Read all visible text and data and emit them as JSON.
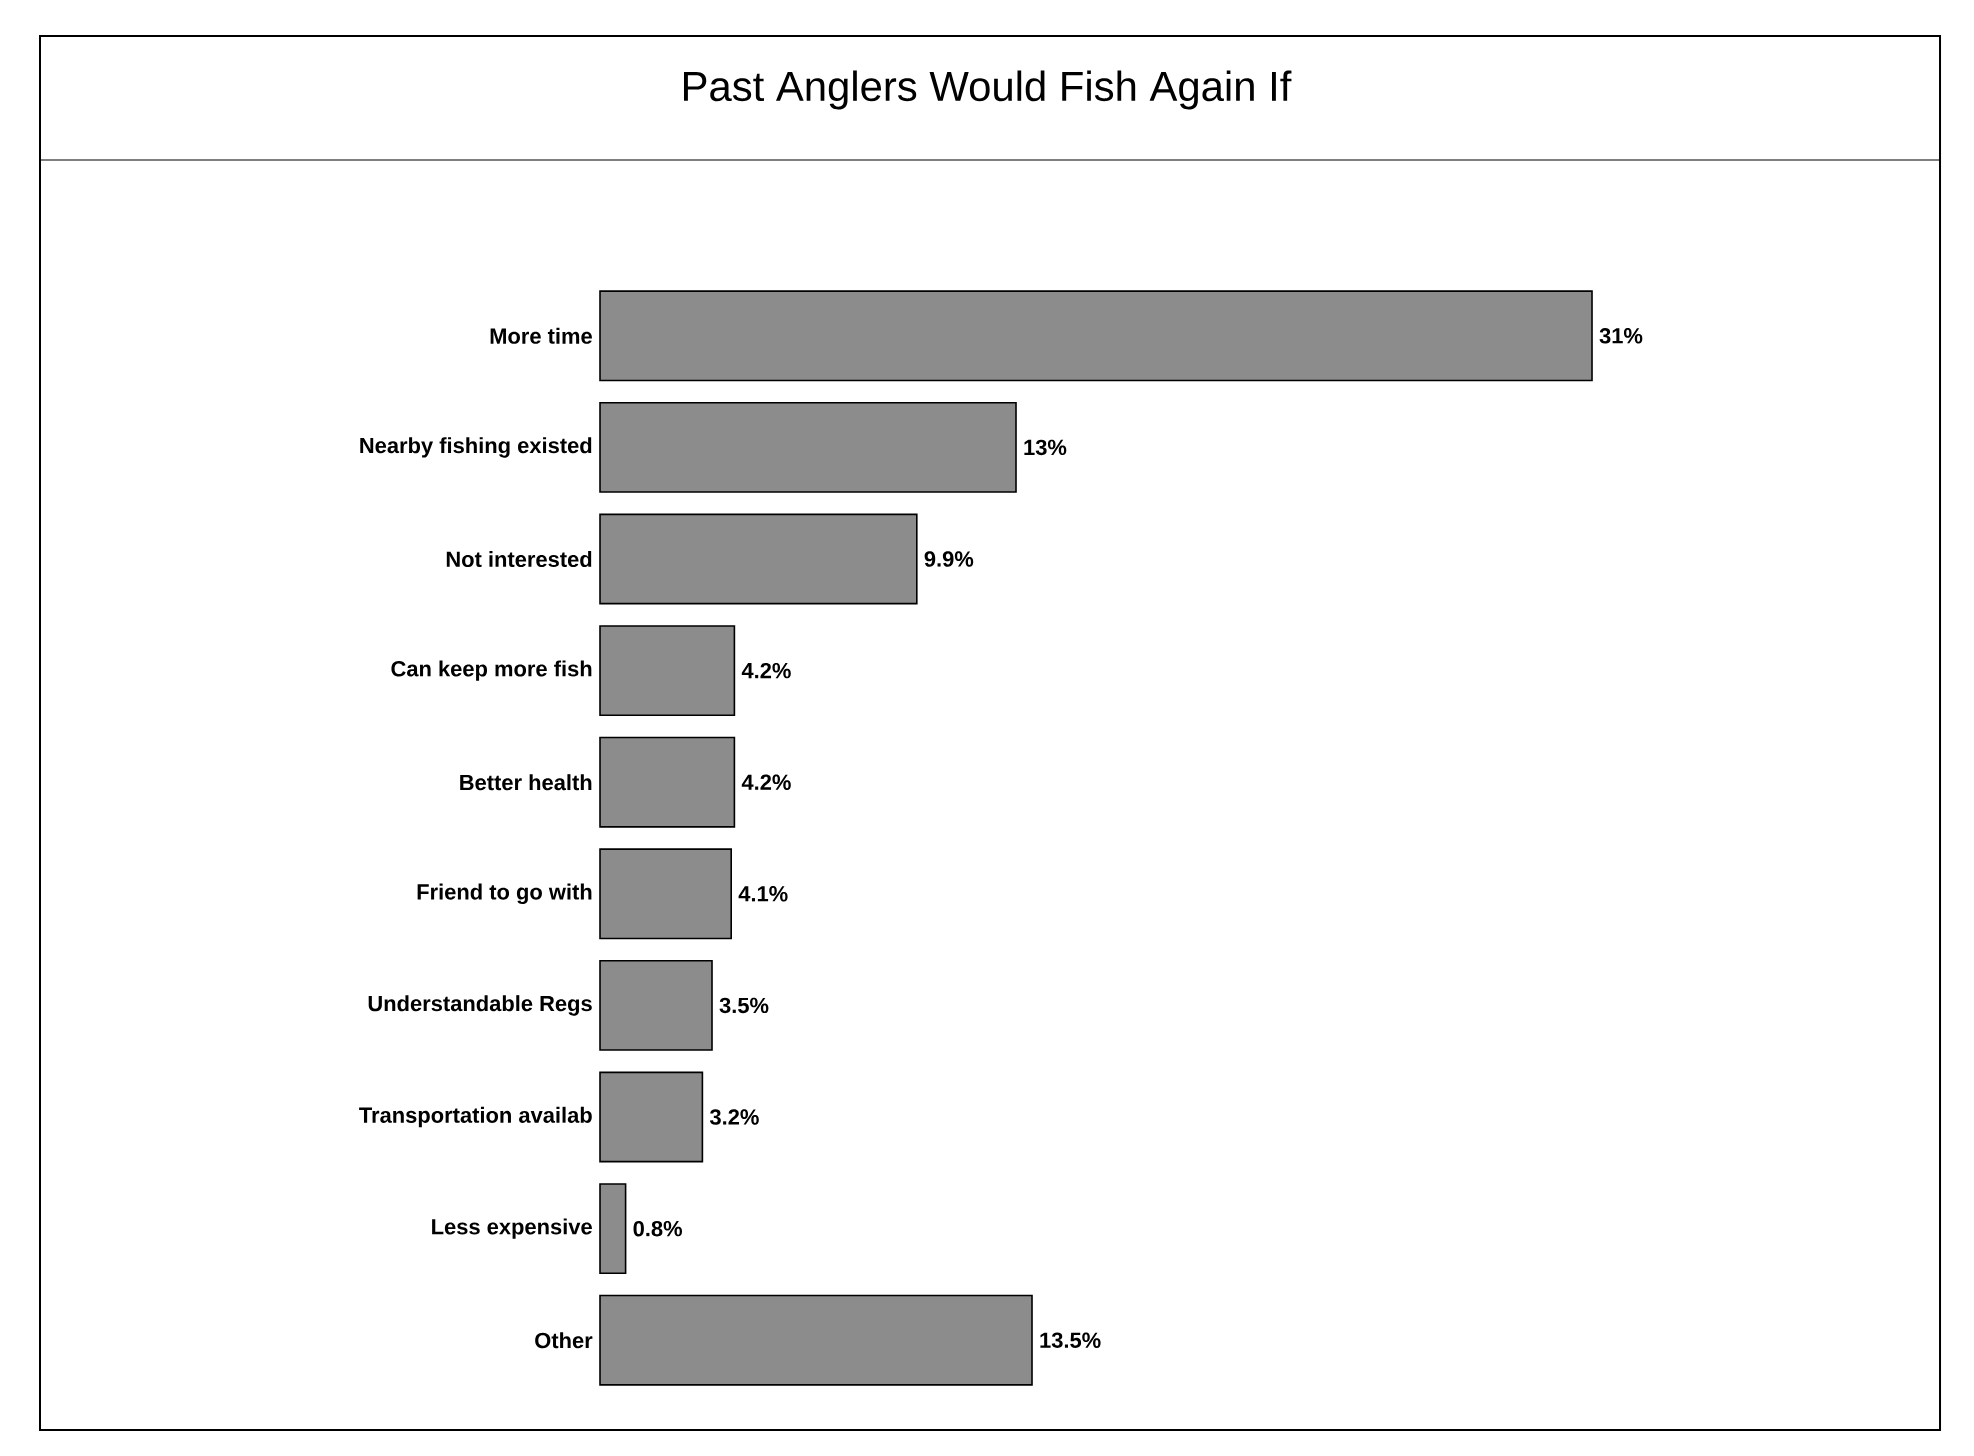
{
  "chart_data": {
    "type": "bar",
    "orientation": "horizontal",
    "title": "Past Anglers Would Fish Again If",
    "categories": [
      "More time",
      "Nearby fishing existed",
      "Not interested",
      "Can keep more fish",
      "Better health",
      "Friend to go with",
      "Understandable Regs",
      "Transportation availab",
      "Less expensive",
      "Other"
    ],
    "values": [
      31,
      13,
      9.9,
      4.2,
      4.2,
      4.1,
      3.5,
      3.2,
      0.8,
      13.5
    ],
    "value_labels": [
      "31%",
      "13%",
      "9.9%",
      "4.2%",
      "4.2%",
      "4.1%",
      "3.5%",
      "3.2%",
      "0.8%",
      "13.5%"
    ],
    "color": "#8c8c8c"
  }
}
